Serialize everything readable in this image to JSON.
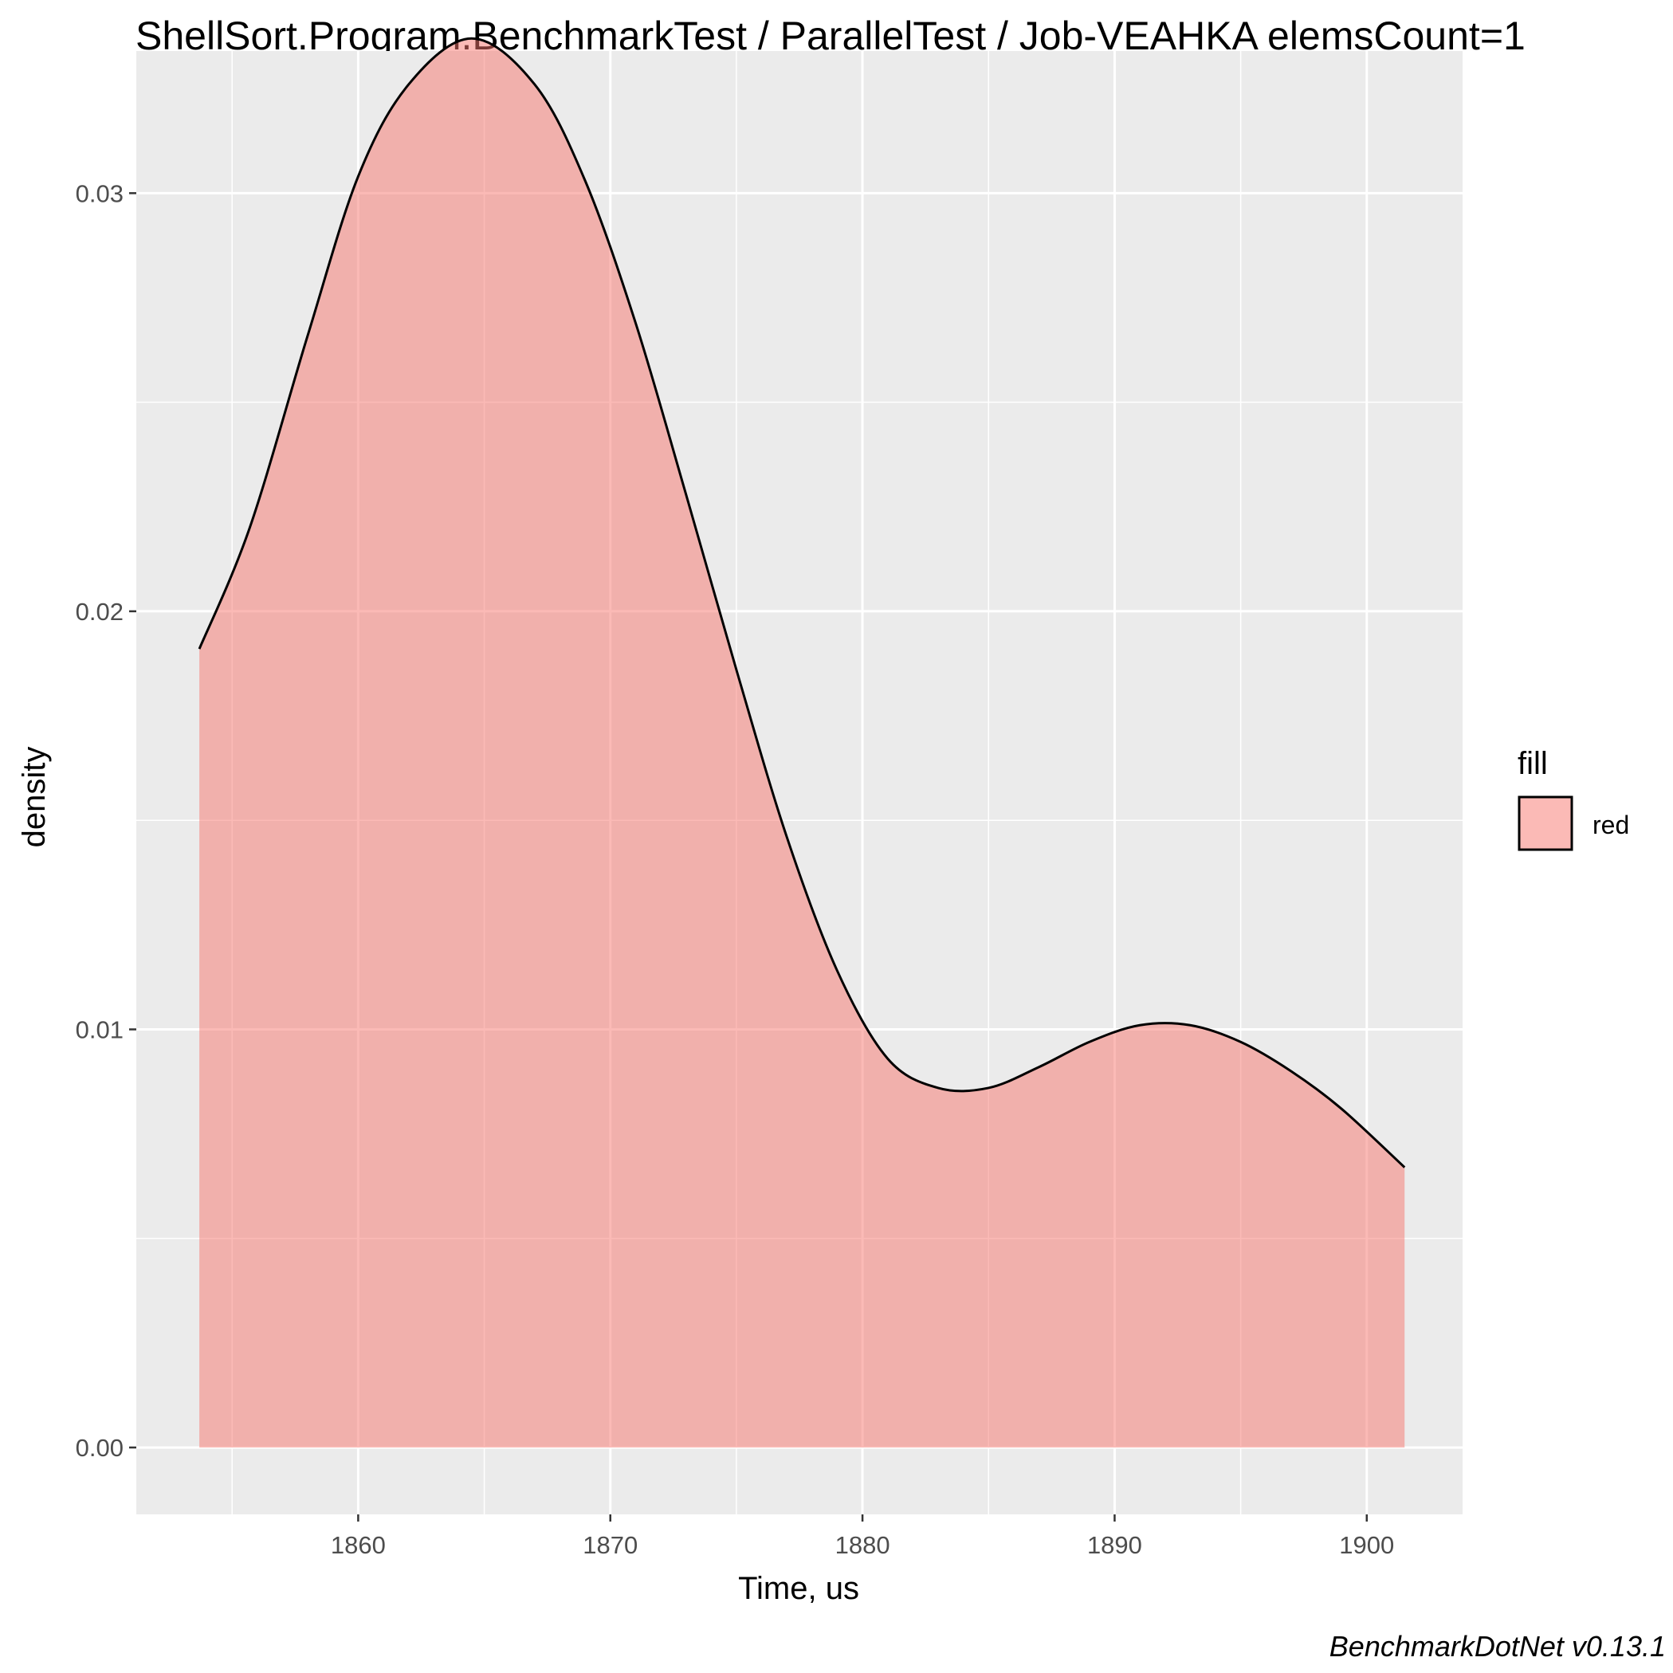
{
  "colors": {
    "panel": "#ebebeb",
    "grid_major": "#ffffff",
    "fill": "#F8766D",
    "fill_alpha": 0.5,
    "line": "#000000",
    "tick": "#333333"
  },
  "chart_data": {
    "type": "area",
    "title": "ShellSort.Program.BenchmarkTest / ParallelTest / Job-VEAHKA elemsCount=1",
    "xlabel": "Time, us",
    "ylabel": "density",
    "caption": "BenchmarkDotNet v0.13.1",
    "xlim": [
      1851.2,
      1903.8
    ],
    "ylim": [
      -0.0016,
      0.0334
    ],
    "x_ticks": [
      1860,
      1870,
      1880,
      1890,
      1900
    ],
    "x_tick_labels": [
      "1860",
      "1870",
      "1880",
      "1890",
      "1900"
    ],
    "y_ticks": [
      0,
      0.01,
      0.02,
      0.03
    ],
    "y_tick_labels": [
      "0.00",
      "0.01",
      "0.02",
      "0.03"
    ],
    "grid": true,
    "legend": {
      "title": "fill",
      "position": "right",
      "entries": [
        {
          "label": "red"
        }
      ]
    },
    "series": [
      {
        "name": "red",
        "x": [
          1853.7,
          1855.7,
          1858.0,
          1860.0,
          1862.0,
          1864.5,
          1867.0,
          1869.0,
          1871.0,
          1873.0,
          1875.0,
          1877.0,
          1879.0,
          1881.0,
          1883.0,
          1885.0,
          1887.0,
          1889.0,
          1891.0,
          1893.0,
          1895.0,
          1897.0,
          1899.0,
          1901.5
        ],
        "y": [
          0.0191,
          0.022,
          0.0266,
          0.0304,
          0.0326,
          0.0337,
          0.0326,
          0.0303,
          0.0269,
          0.0228,
          0.0186,
          0.0146,
          0.0114,
          0.0093,
          0.0086,
          0.0086,
          0.0091,
          0.0097,
          0.0101,
          0.0101,
          0.0097,
          0.009,
          0.0081,
          0.0067
        ]
      }
    ]
  }
}
